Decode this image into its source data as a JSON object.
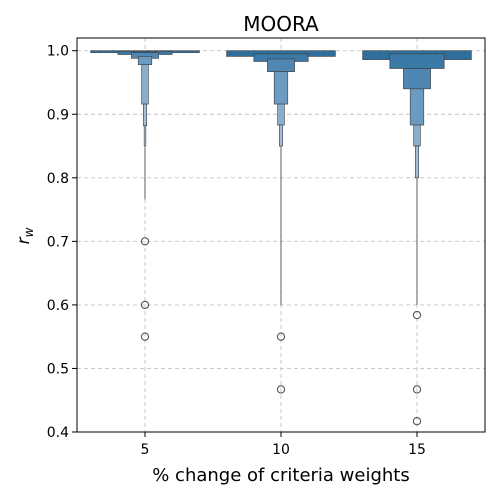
{
  "chart_data": {
    "type": "boxenplot",
    "title": "MOORA",
    "xlabel": "% change of criteria weights",
    "ylabel_base": "r",
    "ylabel_sub": "w",
    "categories": [
      "5",
      "10",
      "15"
    ],
    "ylim": [
      0.4,
      1.02
    ],
    "yticks": [
      0.4,
      0.5,
      0.6,
      0.7,
      0.8,
      0.9,
      1.0
    ],
    "ytick_labels": [
      "0.4",
      "0.5",
      "0.6",
      "0.7",
      "0.8",
      "0.9",
      "1.0"
    ],
    "grid": true,
    "series": [
      {
        "category": "5",
        "levels": [
          {
            "low": 0.997,
            "high": 1.0
          },
          {
            "low": 0.994,
            "high": 0.999
          },
          {
            "low": 0.988,
            "high": 0.997
          },
          {
            "low": 0.978,
            "high": 0.991
          },
          {
            "low": 0.916,
            "high": 0.978
          },
          {
            "low": 0.882,
            "high": 0.916
          },
          {
            "low": 0.851,
            "high": 0.882
          }
        ],
        "whisker": [
          0.766,
          0.851
        ],
        "outliers": [
          0.7,
          0.6,
          0.55
        ]
      },
      {
        "category": "10",
        "levels": [
          {
            "low": 0.991,
            "high": 1.0
          },
          {
            "low": 0.983,
            "high": 0.995
          },
          {
            "low": 0.967,
            "high": 0.987
          },
          {
            "low": 0.916,
            "high": 0.967
          },
          {
            "low": 0.883,
            "high": 0.916
          },
          {
            "low": 0.85,
            "high": 0.883
          }
        ],
        "whisker": [
          0.6,
          0.85
        ],
        "outliers": [
          0.55,
          0.467
        ]
      },
      {
        "category": "15",
        "levels": [
          {
            "low": 0.986,
            "high": 1.0
          },
          {
            "low": 0.972,
            "high": 0.995
          },
          {
            "low": 0.94,
            "high": 0.972
          },
          {
            "low": 0.883,
            "high": 0.94
          },
          {
            "low": 0.85,
            "high": 0.883
          },
          {
            "low": 0.8,
            "high": 0.85
          }
        ],
        "whisker": [
          0.6,
          0.8
        ],
        "outliers": [
          0.584,
          0.467,
          0.417
        ]
      }
    ],
    "level_colors": [
      "#2f6d9a",
      "#3b79a6",
      "#4f87b2",
      "#6d9ac0",
      "#8aadcc",
      "#a3bfd8",
      "#b9cfe2"
    ]
  }
}
